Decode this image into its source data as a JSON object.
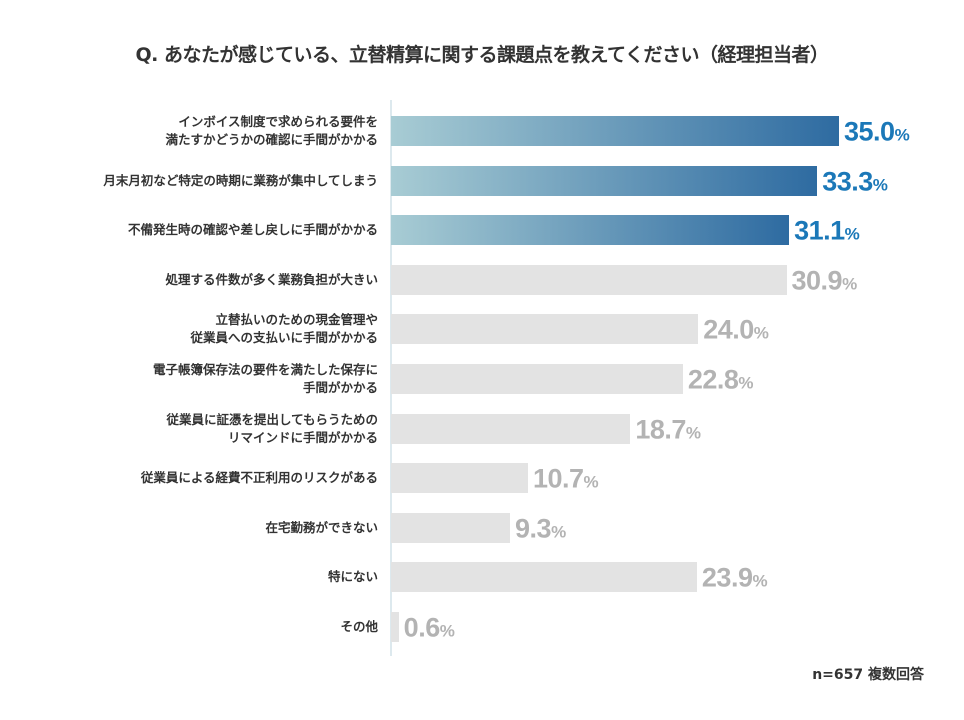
{
  "chart_data": {
    "type": "bar",
    "orientation": "horizontal",
    "title": "Q. あなたが感じている、立替精算に関する課題点を教えてください（経理担当者）",
    "categories": [
      "インボイス制度で求められる要件を\n満たすかどうかの確認に手間がかかる",
      "月末月初など特定の時期に業務が集中してしまう",
      "不備発生時の確認や差し戻しに手間がかかる",
      "処理する件数が多く業務負担が大きい",
      "立替払いのための現金管理や\n従業員への支払いに手間がかかる",
      "電子帳簿保存法の要件を満たした保存に\n手間がかかる",
      "従業員に証憑を提出してもらうための\nリマインドに手間がかかる",
      "従業員による経費不正利用のリスクがある",
      "在宅勤務ができない",
      "特にない",
      "その他"
    ],
    "values": [
      35.0,
      33.3,
      31.1,
      30.9,
      24.0,
      22.8,
      18.7,
      10.7,
      9.3,
      23.9,
      0.6
    ],
    "value_labels": [
      "35.0",
      "33.3",
      "31.1",
      "30.9",
      "24.0",
      "22.8",
      "18.7",
      "10.7",
      "9.3",
      "23.9",
      "0.6"
    ],
    "unit": "%",
    "highlighted_top": 3,
    "colors": {
      "highlight_gradient_start": "#a8ccd4",
      "highlight_gradient_end": "#2e6ba1",
      "highlight_text": "#1b78b8",
      "normal_bar": "#e3e3e3",
      "normal_text": "#b3b3b3"
    },
    "xlim": [
      0,
      35
    ],
    "grid": false,
    "legend": "none"
  },
  "footnote": "n=657 複数回答"
}
